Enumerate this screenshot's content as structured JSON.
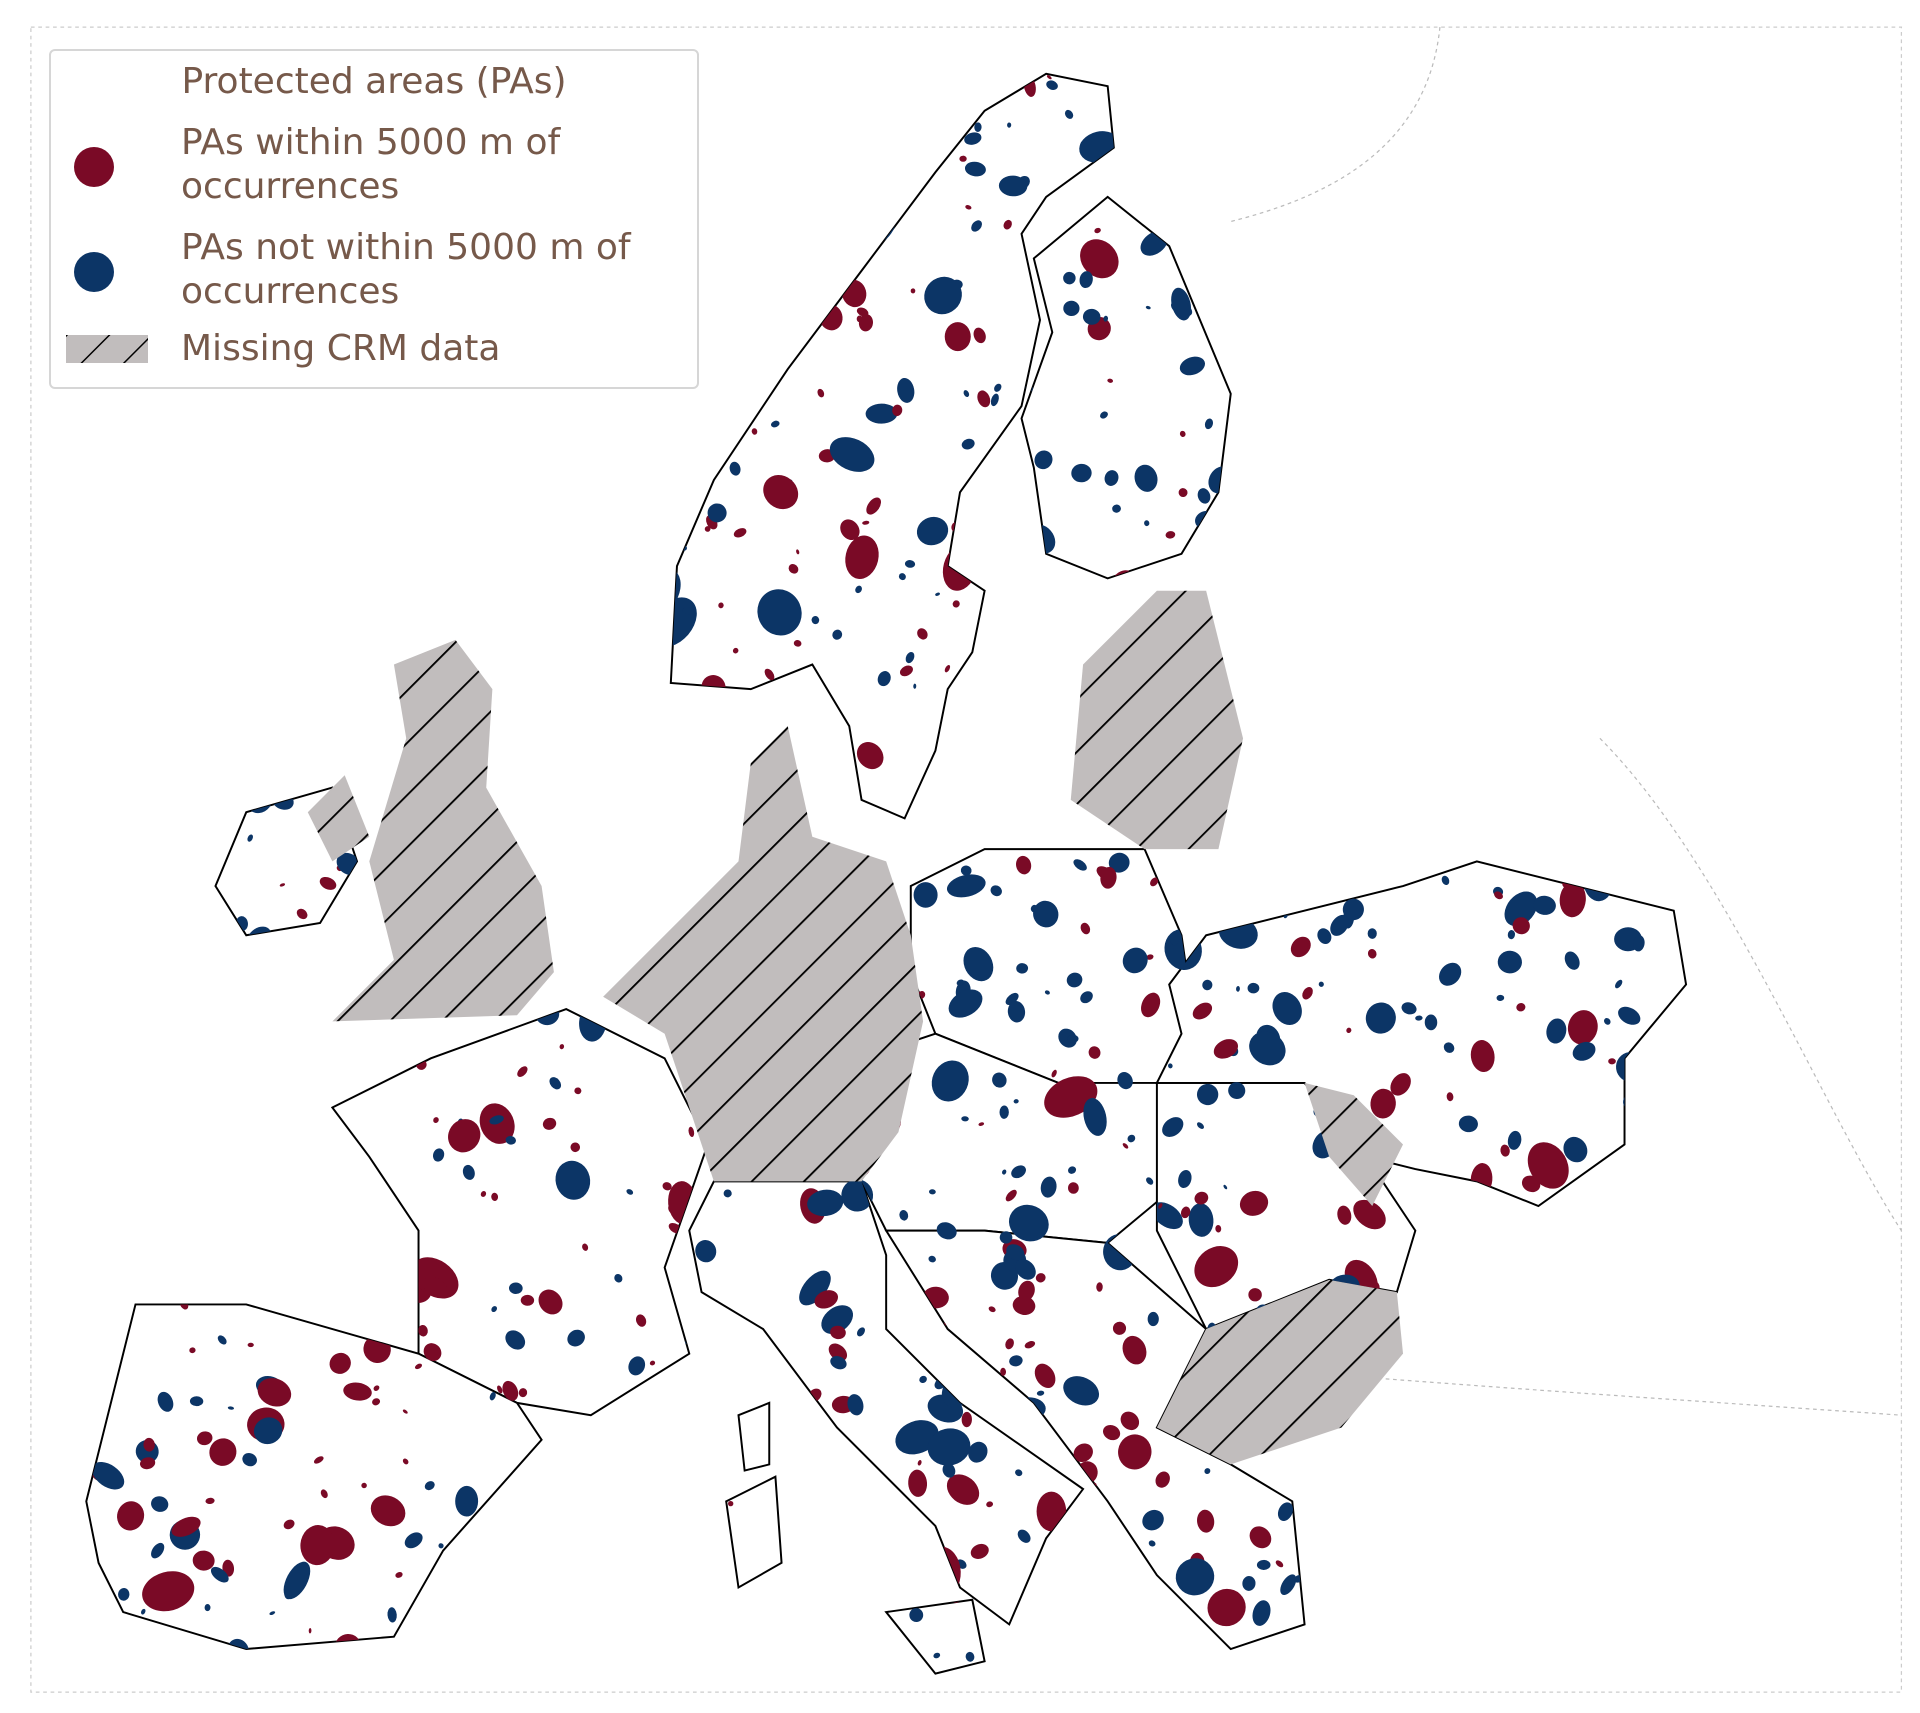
{
  "legend": {
    "title": "Protected areas (PAs)",
    "entries": [
      {
        "label": "PAs within 5000 m of occurrences",
        "color": "#7a0a26"
      },
      {
        "label": "PAs not within 5000 m of occurrences",
        "color": "#0c3566"
      },
      {
        "label": "Missing CRM data"
      }
    ]
  }
}
